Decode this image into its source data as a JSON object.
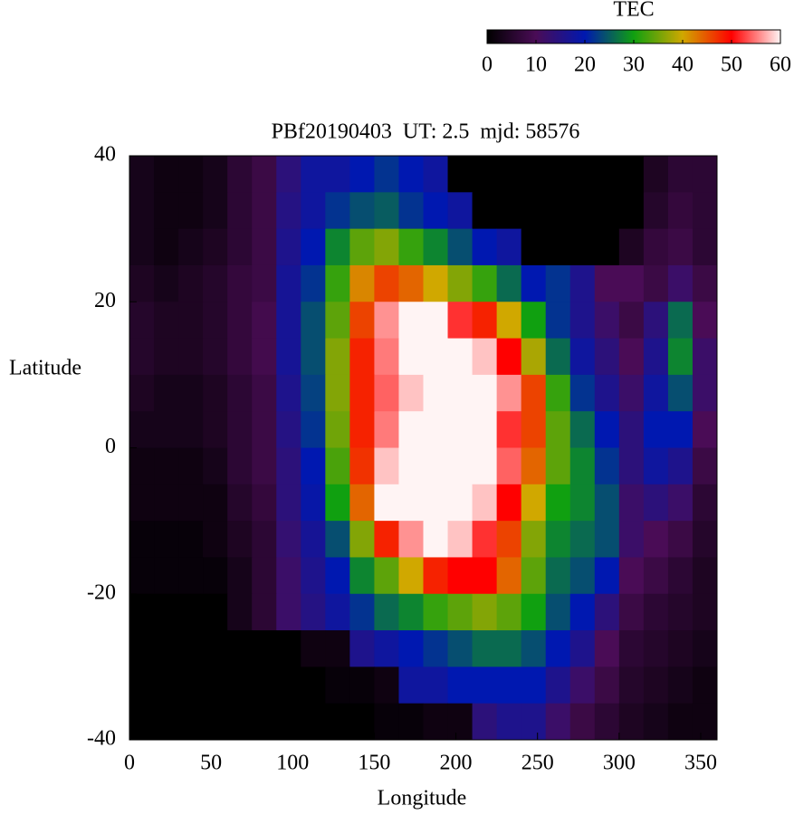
{
  "chart_data": {
    "type": "heatmap",
    "title": "PBf20190403  UT: 2.5  mjd: 58576",
    "xlabel": "Longitude",
    "ylabel": "Latitude",
    "colorbar_label": "TEC",
    "x": [
      7.5,
      22.5,
      37.5,
      52.5,
      67.5,
      82.5,
      97.5,
      112.5,
      127.5,
      142.5,
      157.5,
      172.5,
      187.5,
      202.5,
      217.5,
      232.5,
      247.5,
      262.5,
      277.5,
      292.5,
      307.5,
      322.5,
      337.5,
      352.5
    ],
    "y": [
      37.5,
      32.5,
      27.5,
      22.5,
      17.5,
      12.5,
      7.5,
      2.5,
      -2.5,
      -7.5,
      -12.5,
      -17.5,
      -22.5,
      -27.5,
      -32.5,
      -37.5
    ],
    "values": [
      [
        3,
        2,
        2,
        3,
        6,
        8,
        14,
        18,
        18,
        20,
        22,
        20,
        18,
        0,
        0,
        0,
        0,
        0,
        0,
        0,
        0,
        4,
        6,
        6
      ],
      [
        3,
        2,
        2,
        3,
        6,
        8,
        15,
        18,
        22,
        24,
        25,
        22,
        20,
        18,
        0,
        0,
        0,
        0,
        0,
        0,
        0,
        5,
        7,
        6
      ],
      [
        3,
        2,
        3,
        4,
        6,
        8,
        16,
        20,
        28,
        34,
        36,
        32,
        28,
        24,
        20,
        18,
        0,
        0,
        0,
        0,
        4,
        7,
        8,
        6
      ],
      [
        4,
        3,
        4,
        5,
        7,
        8,
        17,
        22,
        32,
        42,
        46,
        44,
        40,
        36,
        32,
        26,
        20,
        22,
        16,
        10,
        10,
        8,
        12,
        8
      ],
      [
        5,
        4,
        4,
        5,
        7,
        9,
        17,
        24,
        34,
        46,
        56,
        60,
        60,
        52,
        48,
        40,
        30,
        22,
        16,
        12,
        8,
        14,
        26,
        10
      ],
      [
        5,
        4,
        4,
        5,
        7,
        9,
        17,
        24,
        36,
        48,
        55,
        60,
        60,
        60,
        58,
        50,
        38,
        26,
        18,
        14,
        10,
        16,
        28,
        12
      ],
      [
        4,
        3,
        3,
        4,
        6,
        8,
        16,
        23,
        36,
        48,
        54,
        58,
        60,
        60,
        60,
        56,
        46,
        32,
        22,
        16,
        12,
        18,
        24,
        12
      ],
      [
        3,
        3,
        3,
        4,
        6,
        8,
        15,
        22,
        35,
        48,
        55,
        60,
        60,
        60,
        60,
        52,
        46,
        34,
        26,
        20,
        14,
        20,
        20,
        10
      ],
      [
        2,
        2,
        2,
        3,
        6,
        8,
        14,
        20,
        33,
        47,
        58,
        60,
        60,
        60,
        60,
        54,
        44,
        34,
        28,
        22,
        14,
        18,
        16,
        8
      ],
      [
        2,
        2,
        2,
        2,
        5,
        7,
        14,
        19,
        30,
        44,
        60,
        60,
        60,
        60,
        58,
        50,
        40,
        30,
        28,
        24,
        12,
        14,
        12,
        6
      ],
      [
        1,
        1,
        1,
        2,
        4,
        6,
        13,
        17,
        24,
        36,
        48,
        56,
        60,
        58,
        52,
        46,
        36,
        28,
        26,
        24,
        12,
        10,
        8,
        5
      ],
      [
        1,
        1,
        1,
        1,
        3,
        6,
        12,
        16,
        20,
        28,
        34,
        40,
        48,
        50,
        50,
        44,
        34,
        26,
        24,
        20,
        10,
        8,
        6,
        4
      ],
      [
        0,
        0,
        0,
        0,
        3,
        6,
        12,
        15,
        18,
        22,
        26,
        28,
        32,
        34,
        36,
        34,
        30,
        24,
        20,
        14,
        8,
        6,
        5,
        4
      ],
      [
        0,
        0,
        0,
        0,
        0,
        0,
        0,
        2,
        2,
        16,
        18,
        20,
        22,
        24,
        26,
        26,
        24,
        20,
        16,
        10,
        6,
        5,
        4,
        3
      ],
      [
        0,
        0,
        0,
        0,
        0,
        0,
        0,
        0,
        1,
        1,
        2,
        18,
        18,
        20,
        20,
        20,
        20,
        16,
        12,
        8,
        5,
        4,
        3,
        2
      ],
      [
        0,
        0,
        0,
        0,
        0,
        0,
        0,
        0,
        0,
        0,
        1,
        1,
        2,
        2,
        14,
        16,
        16,
        12,
        8,
        6,
        4,
        3,
        2,
        2
      ]
    ],
    "xlim": [
      0,
      360
    ],
    "ylim": [
      -40,
      40
    ],
    "xticks": [
      0,
      50,
      100,
      150,
      200,
      250,
      300,
      350
    ],
    "yticks": [
      -40,
      -20,
      0,
      20,
      40
    ],
    "zlim": [
      0,
      60
    ],
    "zticks": [
      0,
      10,
      20,
      30,
      40,
      50,
      60
    ],
    "colormap": [
      "#000000",
      "#4a0c56",
      "#0018b0",
      "#10a010",
      "#d0a800",
      "#ff0000",
      "#fff4f4"
    ]
  }
}
